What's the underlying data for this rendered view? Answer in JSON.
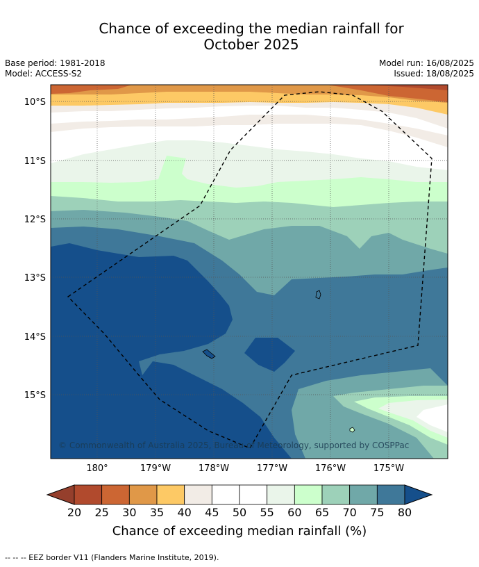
{
  "title": {
    "line1": "Chance of exceeding the median rainfall for",
    "line2": "October 2025"
  },
  "meta": {
    "base_period": "Base period: 1981-2018",
    "model": "Model: ACCESS-S2",
    "model_run": "Model run: 16/08/2025",
    "issued": "Issued: 18/08/2025"
  },
  "map": {
    "lat_labels": [
      "10°S",
      "11°S",
      "12°S",
      "13°S",
      "14°S",
      "15°S"
    ],
    "lon_labels": [
      "180°",
      "179°W",
      "178°W",
      "177°W",
      "176°W",
      "175°W"
    ],
    "copyright": "© Commonwealth of Australia 2025, Bureau of Meteorology, supported by COSPPac"
  },
  "legend": {
    "ticks": [
      "20",
      "25",
      "30",
      "35",
      "40",
      "45",
      "50",
      "55",
      "60",
      "65",
      "70",
      "75",
      "80"
    ],
    "label": "Chance of exceeding median rainfall (%)",
    "colors": [
      "#b14a2d",
      "#cc6633",
      "#e09848",
      "#fdc965",
      "#f2ece6",
      "#ffffff",
      "#ffffff",
      "#eaf5ea",
      "#ccffcc",
      "#9dd1b9",
      "#70a8a8",
      "#3f7899"
    ],
    "under_color": "#953f2c",
    "over_color": "#154f8b"
  },
  "footer": {
    "eez_note": "-- -- -- EEZ border V11 (Flanders Marine Institute, 2019)."
  }
}
